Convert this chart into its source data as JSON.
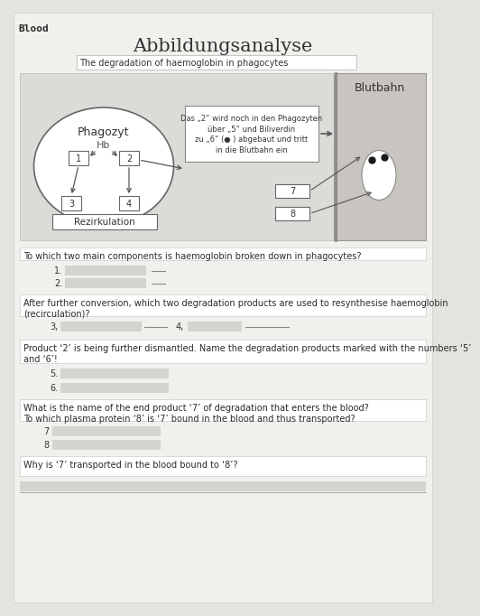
{
  "bg_color": "#e5e3e0",
  "paper_color": "#f2f0ed",
  "title": "Abbildungsanalyse",
  "subtitle": "The degradation of haemoglobin in phagocytes",
  "handwritten_label": "Blood",
  "phagozyt_label": "Phagozyt",
  "hb_label": "Hb",
  "blutbahn_label": "Blutbahn",
  "rezirkulation_label": "Rezirkulation",
  "box_text": "Das „2“ wird noch in den Phagozyten\nüber „5“ und Biliverdin\nzu „6“ (● ) abgebaut und tritt\nin die Blutbahn ein",
  "q1_text": "To which two main components is haemoglobin broken down in phagocytes?",
  "q2_text": "After further conversion, which two degradation products are used to resynthesise haemoglobin\n(recirculation)?",
  "q3_text": "Product ‘2’ is being further dismantled. Name the degradation products marked with the numbers ‘5’\nand ‘6’!",
  "q4_text": "What is the name of the end product ‘7’ of degradation that enters the blood?\nTo which plasma protein ‘8’ is ‘7’ bound in the blood and thus transported?",
  "q5_text": "Why is ‘7’ transported in the blood bound to ‘8’?"
}
